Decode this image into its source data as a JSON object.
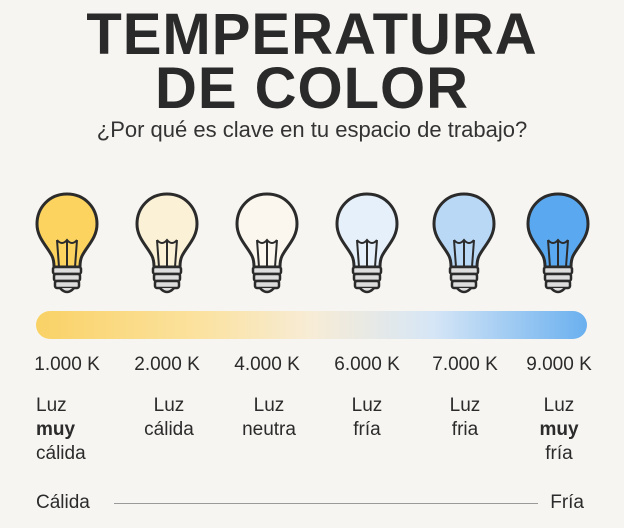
{
  "title_line1": "TEMPERATURA",
  "title_line2": "DE COLOR",
  "subtitle": "¿Por qué es clave en tu espacio de trabajo?",
  "bulbs": [
    {
      "kelvin": "1.000 K",
      "line1": "Luz",
      "line2": "muy",
      "line3": "cálida",
      "color": "#fbd35e"
    },
    {
      "kelvin": "2.000 K",
      "line1": "Luz",
      "line2": "cálida",
      "line3": "",
      "color": "#fbf1d6"
    },
    {
      "kelvin": "4.000 K",
      "line1": "Luz",
      "line2": "neutra",
      "line3": "",
      "color": "#fbf7ee"
    },
    {
      "kelvin": "6.000 K",
      "line1": "Luz",
      "line2": "fría",
      "line3": "",
      "color": "#e6f0fa"
    },
    {
      "kelvin": "7.000 K",
      "line1": "Luz",
      "line2": "fria",
      "line3": "",
      "color": "#b9d8f6"
    },
    {
      "kelvin": "9.000 K",
      "line1": "Luz",
      "line2": "muy",
      "line3": "fría",
      "color": "#5aa9f0"
    }
  ],
  "scale": {
    "left": "Cálida",
    "right": "Fría"
  }
}
